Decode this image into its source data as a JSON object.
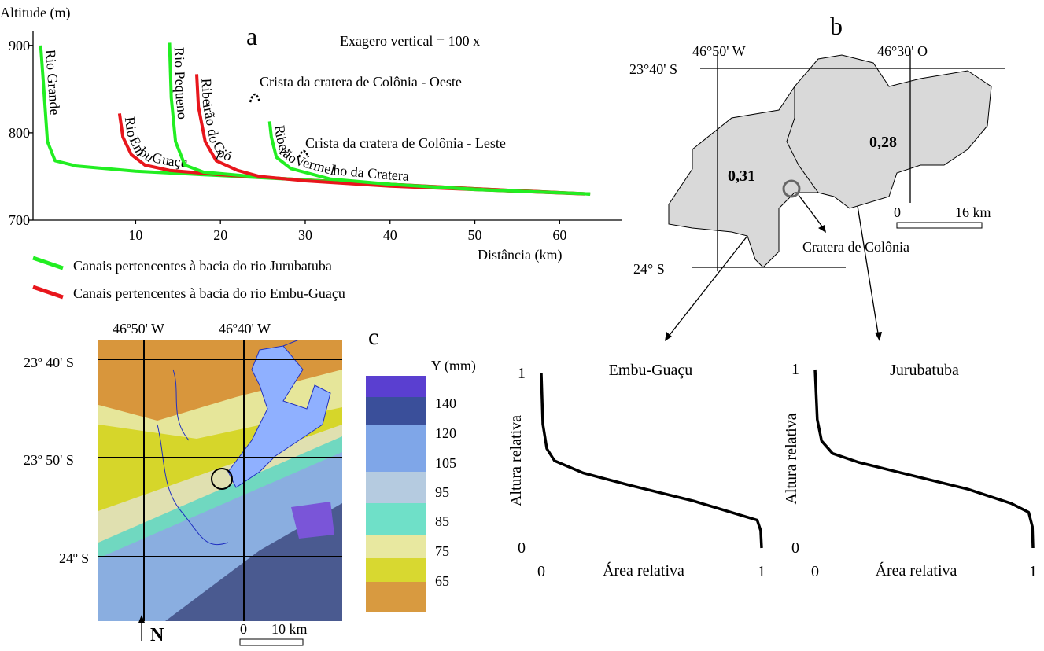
{
  "chart_data": [
    {
      "type": "line",
      "title": "a",
      "subtitle": "Exagero vertical = 100 x",
      "y_label": "Altitude (m)",
      "x_label": "Distância (km)",
      "xlim": [
        -2.1,
        67.3
      ],
      "xticks": [
        10,
        20,
        30,
        40,
        50,
        60
      ],
      "ylim": [
        700,
        916
      ],
      "yticks": [
        700,
        800,
        900
      ],
      "series": [
        {
          "name": "Rio Grande",
          "color": "#22ee22",
          "x": [
            -1.2,
            -0.9,
            -0.4,
            0.5,
            3,
            10,
            20,
            30,
            40,
            50,
            63.6
          ],
          "values": [
            900,
            860,
            790,
            768,
            762,
            756,
            751,
            746,
            741,
            736,
            730
          ]
        },
        {
          "name": "Rio Embu Guaçu",
          "color": "#e8161c",
          "x": [
            8.1,
            8.5,
            9.5,
            11.1,
            14,
            20,
            30,
            40,
            50,
            63.6
          ],
          "values": [
            822,
            795,
            775,
            763,
            757,
            752,
            746,
            741,
            736,
            730
          ]
        },
        {
          "name": "Rio Pequeno",
          "color": "#22ee22",
          "x": [
            14.0,
            14.2,
            14.7,
            15.8,
            18,
            25,
            35,
            45,
            55,
            63.6
          ],
          "values": [
            903,
            840,
            790,
            763,
            755,
            749,
            743,
            738,
            733,
            730
          ]
        },
        {
          "name": "Ribeirão do Cipó",
          "color": "#e8161c",
          "x": [
            17.2,
            17.4,
            18.2,
            19.5,
            22,
            24.6,
            30,
            40,
            50,
            63
          ],
          "values": [
            867,
            830,
            790,
            768,
            757,
            750,
            745,
            739,
            735,
            730
          ]
        },
        {
          "name": "Ribeirão Vermelho da Cratera",
          "color": "#22ee22",
          "x": [
            25.8,
            26,
            26.6,
            28.3,
            33,
            40,
            50,
            63.6
          ],
          "values": [
            813,
            795,
            772,
            759,
            747,
            741,
            735,
            730
          ]
        }
      ],
      "annotations": [
        "Crista da cratera de Colônia - Oeste",
        "Crista da cratera de Colônia - Leste"
      ],
      "legend": [
        {
          "label": "Canais pertencentes à bacia do rio Jurubatuba",
          "color": "#22ee22"
        },
        {
          "label": "Canais pertencentes à bacia do rio Embu-Guaçu",
          "color": "#e8161c"
        }
      ]
    },
    {
      "type": "line",
      "title": "Embu-Guaçu",
      "x_label": "Área relativa",
      "y_label": "Altura relativa",
      "xlim": [
        0,
        1
      ],
      "xticks": [
        0,
        1
      ],
      "ylim": [
        0,
        1
      ],
      "yticks": [
        0,
        1
      ],
      "series": [
        {
          "color": "#000000",
          "x": [
            0,
            0.007,
            0.025,
            0.06,
            0.19,
            0.4,
            0.69,
            0.9,
            0.98,
            0.996,
            1
          ],
          "values": [
            1,
            0.71,
            0.57,
            0.5,
            0.43,
            0.36,
            0.27,
            0.19,
            0.16,
            0.1,
            0
          ]
        }
      ]
    },
    {
      "type": "line",
      "title": "Jurubatuba",
      "x_label": "Área relativa",
      "y_label": "Altura relativa",
      "xlim": [
        0,
        1
      ],
      "xticks": [
        0,
        1
      ],
      "ylim": [
        0,
        1
      ],
      "yticks": [
        0,
        1
      ],
      "series": [
        {
          "color": "#000000",
          "x": [
            0,
            0.01,
            0.03,
            0.08,
            0.2,
            0.4,
            0.7,
            0.9,
            0.98,
            0.997,
            1
          ],
          "values": [
            1,
            0.72,
            0.6,
            0.53,
            0.48,
            0.42,
            0.33,
            0.25,
            0.2,
            0.12,
            0
          ]
        }
      ]
    }
  ],
  "map_b": {
    "label": "b",
    "longitudes": [
      "46°50' W",
      "46°30' O"
    ],
    "latitudes": [
      "23°40' S",
      "24° S"
    ],
    "indices": [
      "0,31",
      "0,28"
    ],
    "scale": [
      "0",
      "16 km"
    ],
    "crater": "Cratera de Colônia"
  },
  "map_c": {
    "label": "c",
    "longitudes": [
      "46º50' W",
      "46º40' W"
    ],
    "latitudes": [
      "23º 40' S",
      "23º 50' S",
      "24º S"
    ],
    "scale": [
      "0",
      "10 km"
    ],
    "north": "N",
    "legend_title": "Y (mm)",
    "legend_values": [
      140,
      120,
      105,
      95,
      85,
      75,
      65
    ]
  }
}
